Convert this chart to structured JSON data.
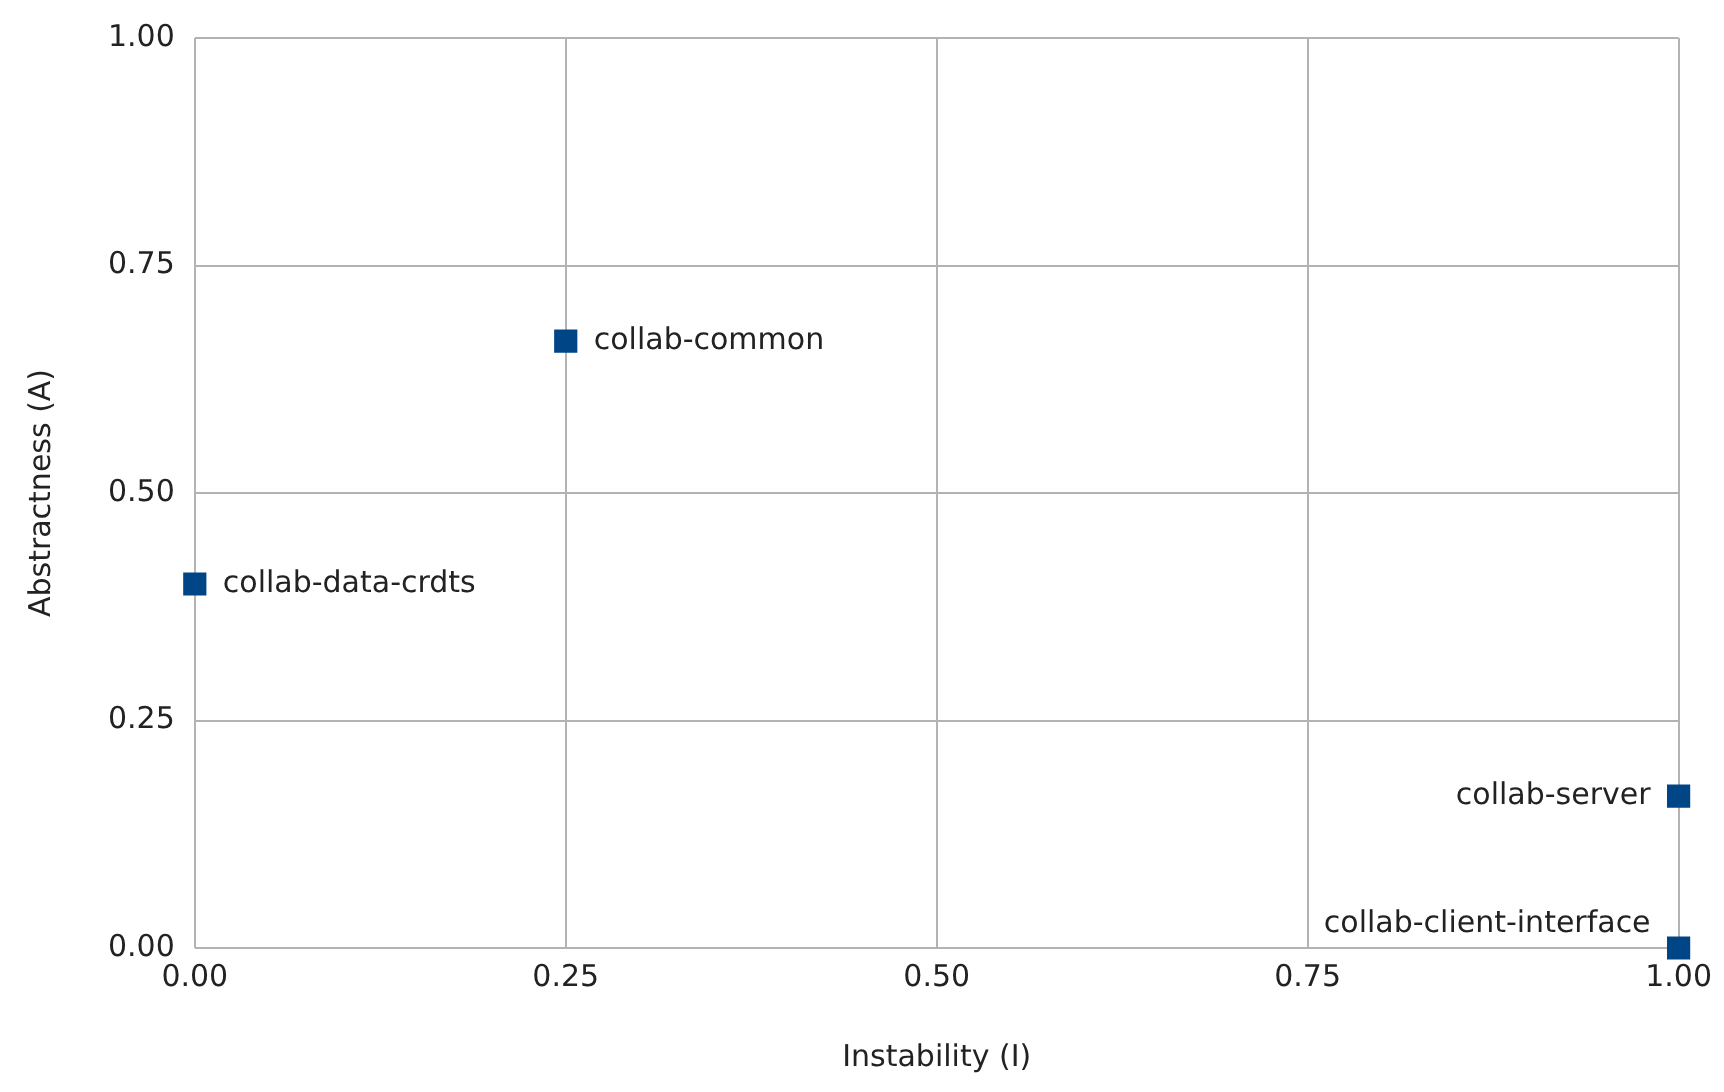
{
  "chart_data": {
    "type": "scatter",
    "xlabel": "Instability (I)",
    "ylabel": "Abstractness (A)",
    "x": [
      0.25,
      0,
      1,
      1
    ],
    "values": [
      0.667,
      0.4,
      0.167,
      0
    ],
    "color": "#004586",
    "marker": "square",
    "xlim": [
      0,
      1
    ],
    "ylim": [
      0,
      1
    ],
    "xticks": [
      {
        "value": 0,
        "label": "0.00"
      },
      {
        "value": 0.25,
        "label": "0.25"
      },
      {
        "value": 0.5,
        "label": "0.50"
      },
      {
        "value": 0.75,
        "label": "0.75"
      },
      {
        "value": 1,
        "label": "1.00"
      }
    ],
    "yticks": [
      {
        "value": 0,
        "label": "0.00"
      },
      {
        "value": 0.25,
        "label": "0.25"
      },
      {
        "value": 0.5,
        "label": "0.50"
      },
      {
        "value": 0.75,
        "label": "0.75"
      },
      {
        "value": 1,
        "label": "1.00"
      }
    ],
    "grid": true,
    "legend": false,
    "annotations": [
      {
        "text": "collab-common",
        "x": 0.25,
        "y": 0.667
      },
      {
        "text": "collab-data-crdts",
        "x": 0,
        "y": 0.4
      },
      {
        "text": "collab-server",
        "x": 1,
        "y": 0.167
      },
      {
        "text": "collab-client-interface",
        "x": 1,
        "y": 0
      }
    ]
  }
}
